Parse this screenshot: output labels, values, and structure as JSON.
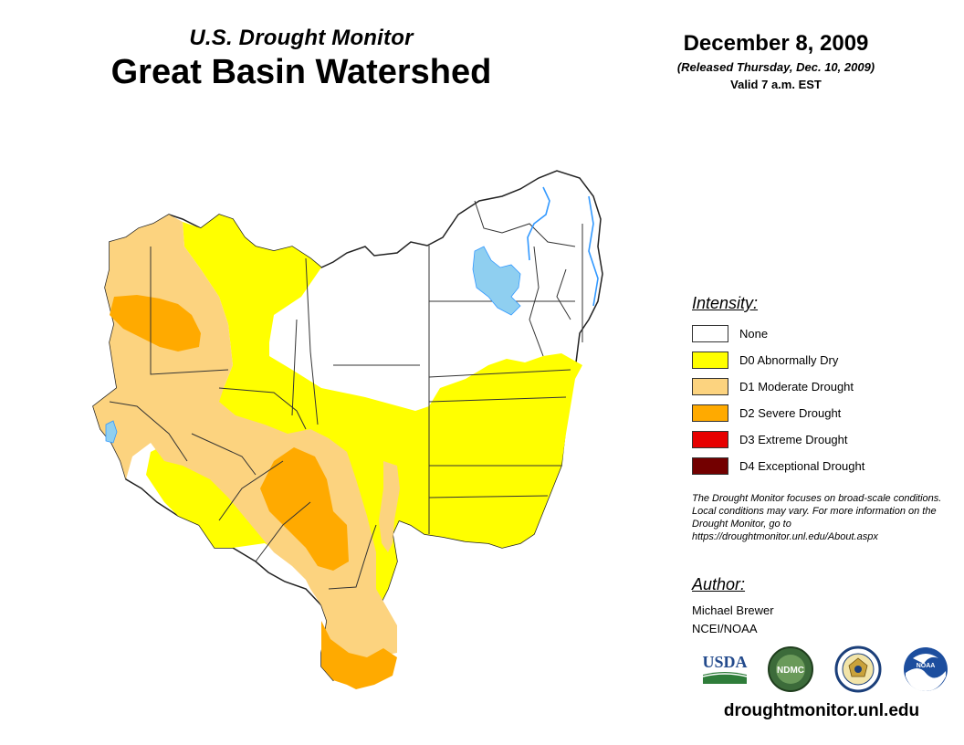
{
  "header": {
    "subtitle": "U.S. Drought Monitor",
    "title": "Great Basin Watershed"
  },
  "date_block": {
    "date": "December 8, 2009",
    "release": "(Released Thursday, Dec. 10, 2009)",
    "valid": "Valid 7 a.m. EST"
  },
  "legend": {
    "heading": "Intensity:",
    "items": [
      {
        "label": "None",
        "color": "#ffffff"
      },
      {
        "label": "D0 Abnormally Dry",
        "color": "#ffff00"
      },
      {
        "label": "D1 Moderate Drought",
        "color": "#fcd37f"
      },
      {
        "label": "D2 Severe Drought",
        "color": "#ffaa00"
      },
      {
        "label": "D3 Extreme Drought",
        "color": "#e60000"
      },
      {
        "label": "D4 Exceptional Drought",
        "color": "#730000"
      }
    ]
  },
  "disclaimer": "The Drought Monitor focuses on broad-scale conditions. Local conditions may vary. For more information on the Drought Monitor, go to https://droughtmonitor.unl.edu/About.aspx",
  "author": {
    "heading": "Author:",
    "name": "Michael Brewer",
    "org": "NCEI/NOAA"
  },
  "logos": {
    "usda": "USDA",
    "ndmc": "NDMC",
    "noaa": "NOAA"
  },
  "site_url": "droughtmonitor.unl.edu",
  "map": {
    "water_color": "#8fcff0",
    "river_color": "#3399ff"
  }
}
